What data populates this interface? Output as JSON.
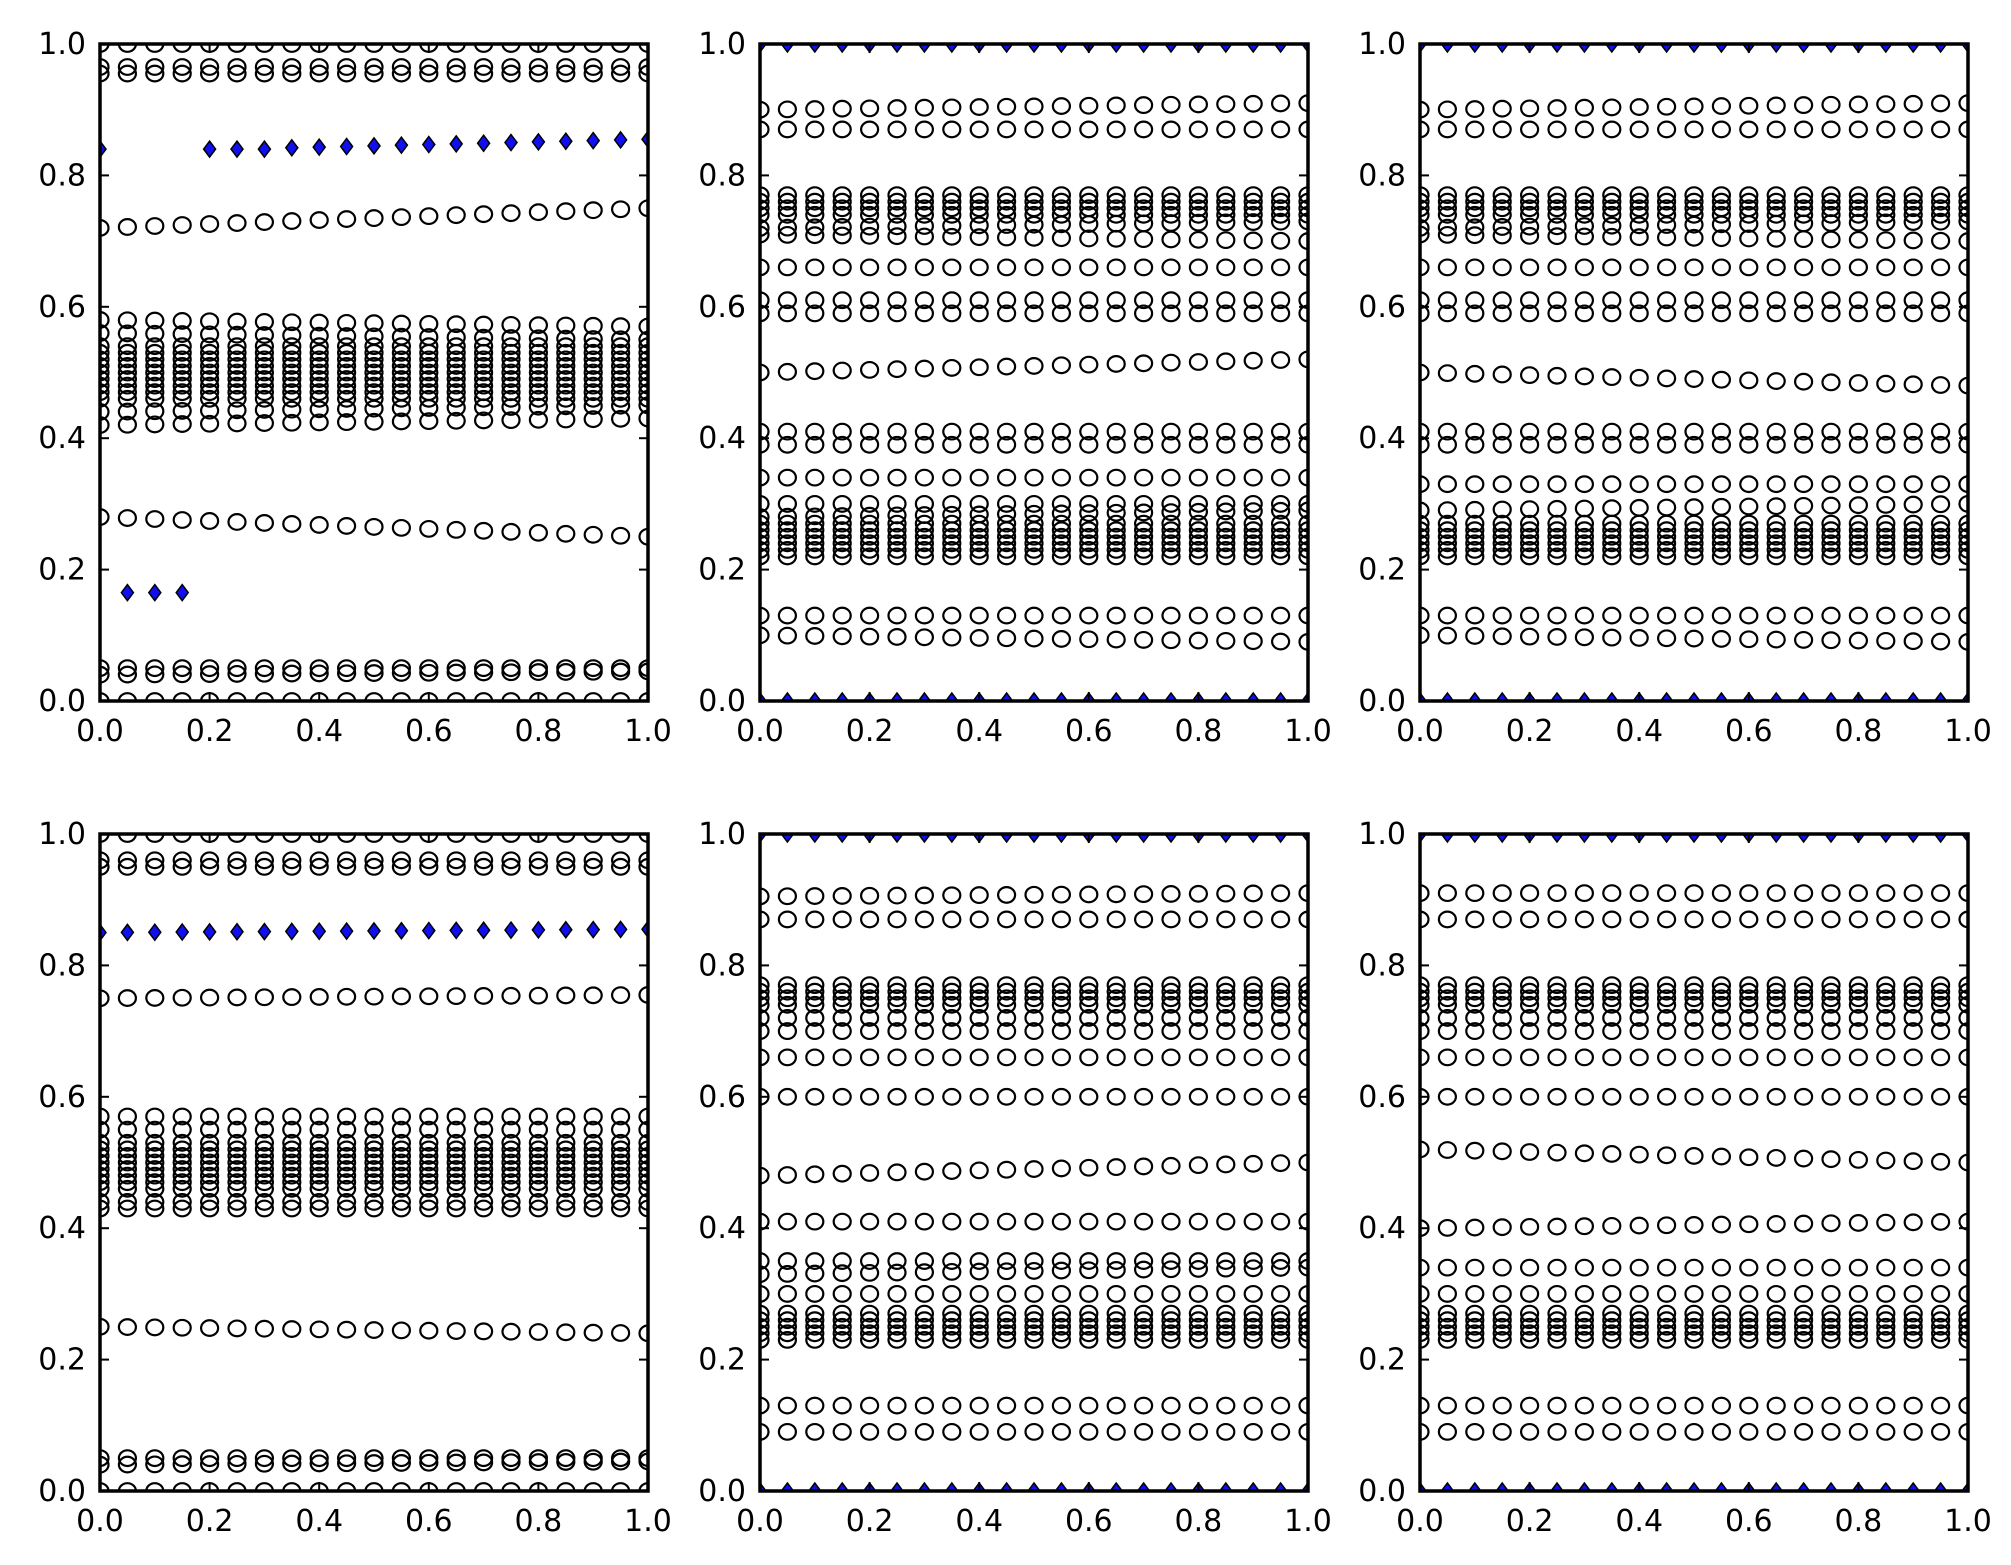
{
  "chart_data": [
    {
      "type": "scatter",
      "panel": "top-left",
      "xlim": [
        0,
        1
      ],
      "ylim": [
        0,
        1
      ],
      "xticks": [
        "0.0",
        "0.2",
        "0.4",
        "0.6",
        "0.8",
        "1.0"
      ],
      "yticks": [
        "0.0",
        "0.2",
        "0.4",
        "0.6",
        "0.8",
        "1.0"
      ],
      "x": [
        0.0,
        0.05,
        0.1,
        0.15,
        0.2,
        0.25,
        0.3,
        0.35,
        0.4,
        0.45,
        0.5,
        0.55,
        0.6,
        0.65,
        0.7,
        0.75,
        0.8,
        0.85,
        0.9,
        0.95,
        1.0
      ],
      "series": [
        {
          "marker": "circle",
          "color": "#000000",
          "rows": [
            [
              0.0,
              0.0
            ],
            [
              0.04,
              0.045
            ],
            [
              0.05,
              0.05
            ],
            [
              0.28,
              0.25
            ],
            [
              0.42,
              0.43
            ],
            [
              0.44,
              0.45
            ],
            [
              0.46,
              0.46
            ],
            [
              0.47,
              0.47
            ],
            [
              0.48,
              0.48
            ],
            [
              0.49,
              0.49
            ],
            [
              0.5,
              0.5
            ],
            [
              0.51,
              0.51
            ],
            [
              0.52,
              0.52
            ],
            [
              0.53,
              0.53
            ],
            [
              0.54,
              0.54
            ],
            [
              0.56,
              0.55
            ],
            [
              0.58,
              0.57
            ],
            [
              0.72,
              0.75
            ],
            [
              0.955,
              0.955
            ],
            [
              0.965,
              0.965
            ],
            [
              1.0,
              1.0
            ]
          ]
        },
        {
          "marker": "diamond",
          "color": "#1010ee",
          "points": [
            [
              0.0,
              0.84
            ],
            [
              0.05,
              0.165
            ],
            [
              0.1,
              0.165
            ],
            [
              0.15,
              0.165
            ],
            [
              0.2,
              0.84
            ],
            [
              0.25,
              0.84
            ],
            [
              0.3,
              0.84
            ],
            [
              0.35,
              0.842
            ],
            [
              0.4,
              0.843
            ],
            [
              0.45,
              0.844
            ],
            [
              0.5,
              0.845
            ],
            [
              0.55,
              0.846
            ],
            [
              0.6,
              0.847
            ],
            [
              0.65,
              0.848
            ],
            [
              0.7,
              0.849
            ],
            [
              0.75,
              0.85
            ],
            [
              0.8,
              0.851
            ],
            [
              0.85,
              0.852
            ],
            [
              0.9,
              0.853
            ],
            [
              0.95,
              0.854
            ],
            [
              1.0,
              0.855
            ]
          ]
        }
      ]
    },
    {
      "type": "scatter",
      "panel": "top-middle",
      "xlim": [
        0,
        1
      ],
      "ylim": [
        0,
        1
      ],
      "xticks": [
        "0.0",
        "0.2",
        "0.4",
        "0.6",
        "0.8",
        "1.0"
      ],
      "yticks": [
        "0.0",
        "0.2",
        "0.4",
        "0.6",
        "0.8",
        "1.0"
      ],
      "x": [
        0.0,
        0.05,
        0.1,
        0.15,
        0.2,
        0.25,
        0.3,
        0.35,
        0.4,
        0.45,
        0.5,
        0.55,
        0.6,
        0.65,
        0.7,
        0.75,
        0.8,
        0.85,
        0.9,
        0.95,
        1.0
      ],
      "series": [
        {
          "marker": "circle",
          "color": "#000000",
          "rows": [
            [
              0.1,
              0.09
            ],
            [
              0.13,
              0.13
            ],
            [
              0.22,
              0.22
            ],
            [
              0.23,
              0.23
            ],
            [
              0.24,
              0.24
            ],
            [
              0.25,
              0.25
            ],
            [
              0.26,
              0.26
            ],
            [
              0.27,
              0.27
            ],
            [
              0.28,
              0.29
            ],
            [
              0.3,
              0.3
            ],
            [
              0.34,
              0.34
            ],
            [
              0.39,
              0.39
            ],
            [
              0.41,
              0.41
            ],
            [
              0.5,
              0.52
            ],
            [
              0.59,
              0.59
            ],
            [
              0.61,
              0.61
            ],
            [
              0.66,
              0.66
            ],
            [
              0.71,
              0.7
            ],
            [
              0.72,
              0.73
            ],
            [
              0.74,
              0.74
            ],
            [
              0.75,
              0.75
            ],
            [
              0.76,
              0.76
            ],
            [
              0.77,
              0.77
            ],
            [
              0.87,
              0.87
            ],
            [
              0.9,
              0.91
            ]
          ]
        },
        {
          "marker": "diamond",
          "color": "#1010ee",
          "rows": [
            [
              0.0,
              0.0
            ],
            [
              1.0,
              1.0
            ]
          ]
        }
      ]
    },
    {
      "type": "scatter",
      "panel": "top-right",
      "xlim": [
        0,
        1
      ],
      "ylim": [
        0,
        1
      ],
      "xticks": [
        "0.0",
        "0.2",
        "0.4",
        "0.6",
        "0.8",
        "1.0"
      ],
      "yticks": [
        "0.0",
        "0.2",
        "0.4",
        "0.6",
        "0.8",
        "1.0"
      ],
      "x": [
        0.0,
        0.05,
        0.1,
        0.15,
        0.2,
        0.25,
        0.3,
        0.35,
        0.4,
        0.45,
        0.5,
        0.55,
        0.6,
        0.65,
        0.7,
        0.75,
        0.8,
        0.85,
        0.9,
        0.95,
        1.0
      ],
      "series": [
        {
          "marker": "circle",
          "color": "#000000",
          "rows": [
            [
              0.1,
              0.09
            ],
            [
              0.13,
              0.13
            ],
            [
              0.22,
              0.22
            ],
            [
              0.23,
              0.23
            ],
            [
              0.24,
              0.24
            ],
            [
              0.25,
              0.25
            ],
            [
              0.26,
              0.26
            ],
            [
              0.27,
              0.27
            ],
            [
              0.29,
              0.3
            ],
            [
              0.33,
              0.33
            ],
            [
              0.39,
              0.39
            ],
            [
              0.41,
              0.41
            ],
            [
              0.5,
              0.48
            ],
            [
              0.59,
              0.59
            ],
            [
              0.61,
              0.61
            ],
            [
              0.66,
              0.66
            ],
            [
              0.71,
              0.7
            ],
            [
              0.72,
              0.73
            ],
            [
              0.74,
              0.74
            ],
            [
              0.75,
              0.75
            ],
            [
              0.76,
              0.76
            ],
            [
              0.77,
              0.77
            ],
            [
              0.87,
              0.87
            ],
            [
              0.9,
              0.91
            ]
          ]
        },
        {
          "marker": "diamond",
          "color": "#1010ee",
          "rows": [
            [
              0.0,
              0.0
            ],
            [
              1.0,
              1.0
            ]
          ]
        }
      ]
    },
    {
      "type": "scatter",
      "panel": "bottom-left",
      "xlim": [
        0,
        1
      ],
      "ylim": [
        0,
        1
      ],
      "xticks": [
        "0.0",
        "0.2",
        "0.4",
        "0.6",
        "0.8",
        "1.0"
      ],
      "yticks": [
        "0.0",
        "0.2",
        "0.4",
        "0.6",
        "0.8",
        "1.0"
      ],
      "x": [
        0.0,
        0.05,
        0.1,
        0.15,
        0.2,
        0.25,
        0.3,
        0.35,
        0.4,
        0.45,
        0.5,
        0.55,
        0.6,
        0.65,
        0.7,
        0.75,
        0.8,
        0.85,
        0.9,
        0.95,
        1.0
      ],
      "series": [
        {
          "marker": "circle",
          "color": "#000000",
          "rows": [
            [
              0.0,
              0.0
            ],
            [
              0.04,
              0.045
            ],
            [
              0.05,
              0.05
            ],
            [
              0.25,
              0.24
            ],
            [
              0.43,
              0.43
            ],
            [
              0.44,
              0.44
            ],
            [
              0.46,
              0.46
            ],
            [
              0.47,
              0.47
            ],
            [
              0.48,
              0.48
            ],
            [
              0.49,
              0.49
            ],
            [
              0.5,
              0.5
            ],
            [
              0.51,
              0.51
            ],
            [
              0.52,
              0.52
            ],
            [
              0.53,
              0.53
            ],
            [
              0.55,
              0.55
            ],
            [
              0.57,
              0.57
            ],
            [
              0.75,
              0.755
            ],
            [
              0.95,
              0.95
            ],
            [
              0.96,
              0.96
            ],
            [
              1.0,
              1.0
            ]
          ]
        },
        {
          "marker": "diamond",
          "color": "#1010ee",
          "rows": [
            [
              0.85,
              0.855
            ]
          ]
        }
      ]
    },
    {
      "type": "scatter",
      "panel": "bottom-middle",
      "xlim": [
        0,
        1
      ],
      "ylim": [
        0,
        1
      ],
      "xticks": [
        "0.0",
        "0.2",
        "0.4",
        "0.6",
        "0.8",
        "1.0"
      ],
      "yticks": [
        "0.0",
        "0.2",
        "0.4",
        "0.6",
        "0.8",
        "1.0"
      ],
      "x": [
        0.0,
        0.05,
        0.1,
        0.15,
        0.2,
        0.25,
        0.3,
        0.35,
        0.4,
        0.45,
        0.5,
        0.55,
        0.6,
        0.65,
        0.7,
        0.75,
        0.8,
        0.85,
        0.9,
        0.95,
        1.0
      ],
      "series": [
        {
          "marker": "circle",
          "color": "#000000",
          "rows": [
            [
              0.09,
              0.09
            ],
            [
              0.13,
              0.13
            ],
            [
              0.23,
              0.23
            ],
            [
              0.24,
              0.24
            ],
            [
              0.25,
              0.25
            ],
            [
              0.26,
              0.26
            ],
            [
              0.27,
              0.27
            ],
            [
              0.3,
              0.3
            ],
            [
              0.33,
              0.34
            ],
            [
              0.35,
              0.35
            ],
            [
              0.41,
              0.41
            ],
            [
              0.48,
              0.5
            ],
            [
              0.6,
              0.6
            ],
            [
              0.66,
              0.66
            ],
            [
              0.7,
              0.7
            ],
            [
              0.72,
              0.72
            ],
            [
              0.74,
              0.74
            ],
            [
              0.75,
              0.75
            ],
            [
              0.76,
              0.76
            ],
            [
              0.77,
              0.77
            ],
            [
              0.87,
              0.87
            ],
            [
              0.905,
              0.91
            ]
          ]
        },
        {
          "marker": "diamond",
          "color": "#1010ee",
          "rows": [
            [
              0.0,
              0.0
            ],
            [
              1.0,
              1.0
            ]
          ]
        }
      ]
    },
    {
      "type": "scatter",
      "panel": "bottom-right",
      "xlim": [
        0,
        1
      ],
      "ylim": [
        0,
        1
      ],
      "xticks": [
        "0.0",
        "0.2",
        "0.4",
        "0.6",
        "0.8",
        "1.0"
      ],
      "yticks": [
        "0.0",
        "0.2",
        "0.4",
        "0.6",
        "0.8",
        "1.0"
      ],
      "x": [
        0.0,
        0.05,
        0.1,
        0.15,
        0.2,
        0.25,
        0.3,
        0.35,
        0.4,
        0.45,
        0.5,
        0.55,
        0.6,
        0.65,
        0.7,
        0.75,
        0.8,
        0.85,
        0.9,
        0.95,
        1.0
      ],
      "series": [
        {
          "marker": "circle",
          "color": "#000000",
          "rows": [
            [
              0.09,
              0.09
            ],
            [
              0.13,
              0.13
            ],
            [
              0.23,
              0.23
            ],
            [
              0.24,
              0.24
            ],
            [
              0.25,
              0.25
            ],
            [
              0.26,
              0.26
            ],
            [
              0.27,
              0.27
            ],
            [
              0.3,
              0.3
            ],
            [
              0.34,
              0.34
            ],
            [
              0.4,
              0.41
            ],
            [
              0.52,
              0.5
            ],
            [
              0.6,
              0.6
            ],
            [
              0.66,
              0.66
            ],
            [
              0.7,
              0.7
            ],
            [
              0.72,
              0.72
            ],
            [
              0.74,
              0.74
            ],
            [
              0.75,
              0.75
            ],
            [
              0.76,
              0.76
            ],
            [
              0.77,
              0.77
            ],
            [
              0.87,
              0.87
            ],
            [
              0.91,
              0.91
            ]
          ]
        },
        {
          "marker": "diamond",
          "color": "#1010ee",
          "rows": [
            [
              0.0,
              0.0
            ],
            [
              1.0,
              1.0
            ]
          ]
        }
      ]
    }
  ]
}
